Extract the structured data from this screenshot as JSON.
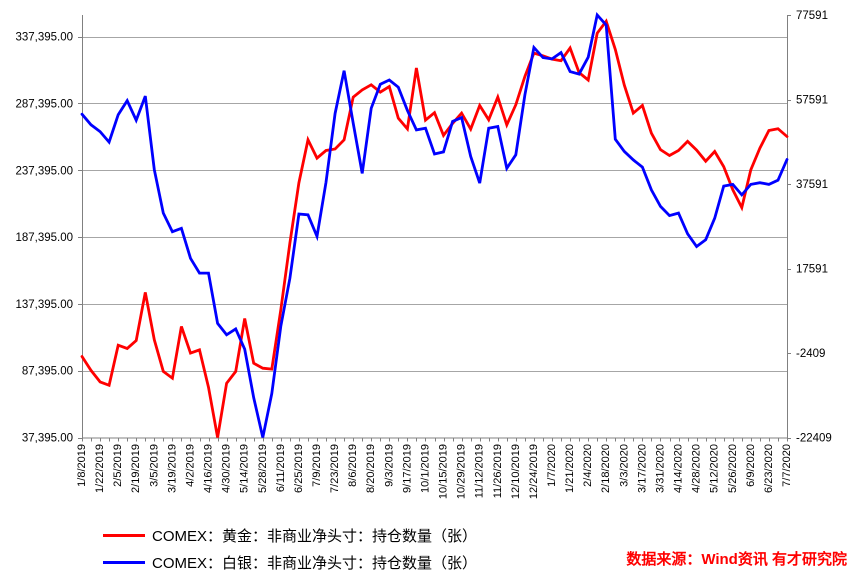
{
  "legend": [
    {
      "label": "COMEX：黄金：非商业净头寸：持仓数量（张）",
      "color": "#ff0000"
    },
    {
      "label": "COMEX：白银：非商业净头寸：持仓数量（张）",
      "color": "#0000ff"
    }
  ],
  "footer": {
    "text": "数据来源：Wind资讯 有才研究院",
    "color": "#ff0000"
  },
  "chart_data": {
    "type": "line",
    "title": "",
    "grid": true,
    "background": "#ffffff",
    "gridline_color": "#a6a6a6",
    "axis_color": "#808080",
    "label_color": "#000000",
    "x": [
      "1/8/2019",
      "1/15/2019",
      "1/22/2019",
      "1/29/2019",
      "2/5/2019",
      "2/12/2019",
      "2/19/2019",
      "2/26/2019",
      "3/5/2019",
      "3/12/2019",
      "3/19/2019",
      "3/26/2019",
      "4/2/2019",
      "4/9/2019",
      "4/16/2019",
      "4/23/2019",
      "4/30/2019",
      "5/7/2019",
      "5/14/2019",
      "5/21/2019",
      "5/28/2019",
      "6/4/2019",
      "6/11/2019",
      "6/18/2019",
      "6/25/2019",
      "7/2/2019",
      "7/9/2019",
      "7/16/2019",
      "7/23/2019",
      "7/30/2019",
      "8/6/2019",
      "8/13/2019",
      "8/20/2019",
      "8/27/2019",
      "9/3/2019",
      "9/10/2019",
      "9/17/2019",
      "9/24/2019",
      "10/1/2019",
      "10/8/2019",
      "10/15/2019",
      "10/22/2019",
      "10/29/2019",
      "11/5/2019",
      "11/12/2019",
      "11/19/2019",
      "11/26/2019",
      "12/3/2019",
      "12/10/2019",
      "12/17/2019",
      "12/24/2019",
      "12/31/2019",
      "1/7/2020",
      "1/14/2020",
      "1/21/2020",
      "1/28/2020",
      "2/4/2020",
      "2/11/2020",
      "2/18/2020",
      "2/25/2020",
      "3/3/2020",
      "3/10/2020",
      "3/17/2020",
      "3/24/2020",
      "3/31/2020",
      "4/7/2020",
      "4/14/2020",
      "4/21/2020",
      "4/28/2020",
      "5/5/2020",
      "5/12/2020",
      "5/19/2020",
      "5/26/2020",
      "6/2/2020",
      "6/9/2020",
      "6/16/2020",
      "6/23/2020",
      "6/30/2020",
      "7/7/2020"
    ],
    "x_label_every": 2,
    "series": [
      {
        "name": "COMEX：黄金：非商业净头寸：持仓数量（张）",
        "color": "#ff0000",
        "axis": "left",
        "values": [
          98000,
          87600,
          79000,
          76500,
          106500,
          104000,
          110000,
          146000,
          110500,
          86900,
          81800,
          120500,
          100600,
          103000,
          75000,
          37395,
          78000,
          86800,
          126500,
          93000,
          89300,
          88600,
          133000,
          183000,
          228000,
          260200,
          246500,
          252200,
          253300,
          260200,
          292200,
          297600,
          301400,
          295900,
          300100,
          276400,
          268400,
          314000,
          275000,
          280500,
          263500,
          272500,
          280200,
          268200,
          285900,
          275200,
          292200,
          271400,
          286400,
          307600,
          325100,
          323100,
          320600,
          319400,
          328900,
          310500,
          305000,
          340000,
          349000,
          327900,
          301200,
          280200,
          286000,
          265200,
          252800,
          248500,
          252200,
          259000,
          252500,
          244200,
          251500,
          240200,
          222800,
          209500,
          237800,
          254000,
          267200,
          268500,
          262700
        ]
      },
      {
        "name": "COMEX：白银：非商业净头寸：持仓数量（张）",
        "color": "#0000ff",
        "axis": "right",
        "values": [
          54100,
          51600,
          50000,
          47500,
          54000,
          57300,
          52700,
          58400,
          41000,
          30700,
          26300,
          27100,
          20000,
          16500,
          16500,
          4600,
          1900,
          3300,
          -1500,
          -13000,
          -22409,
          -12000,
          3900,
          15300,
          30500,
          30300,
          25200,
          38000,
          54300,
          64400,
          52000,
          40100,
          55500,
          61200,
          62200,
          60500,
          55000,
          50400,
          50800,
          44700,
          45200,
          52400,
          53300,
          44100,
          37800,
          50800,
          51200,
          41300,
          44500,
          58700,
          69900,
          67500,
          67200,
          68700,
          64200,
          63600,
          67600,
          77591,
          75200,
          48200,
          45300,
          43300,
          41600,
          36200,
          32300,
          30100,
          30700,
          25800,
          22800,
          24400,
          29500,
          37100,
          37500,
          35000,
          37500,
          37900,
          37500,
          38500,
          43400
        ]
      }
    ],
    "axes": {
      "left": {
        "min": 37395,
        "max": 353635,
        "ticks": [
          {
            "value": 337395,
            "label": "337,395.00"
          },
          {
            "value": 287395,
            "label": "287,395.00"
          },
          {
            "value": 237395,
            "label": "237,395.00"
          },
          {
            "value": 187395,
            "label": "187,395.00"
          },
          {
            "value": 137395,
            "label": "137,395.00"
          },
          {
            "value": 87395,
            "label": "87,395.00"
          },
          {
            "value": 37395,
            "label": "37,395.00"
          }
        ]
      },
      "right": {
        "min": -22409,
        "max": 77591,
        "ticks": [
          {
            "value": 77591,
            "label": "77591"
          },
          {
            "value": 57591,
            "label": "57591"
          },
          {
            "value": 37591,
            "label": "37591"
          },
          {
            "value": 17591,
            "label": "17591"
          },
          {
            "value": -2409,
            "label": "-2409"
          },
          {
            "value": -22409,
            "label": "-22409"
          }
        ]
      }
    },
    "legend_position": "bottom-left"
  }
}
